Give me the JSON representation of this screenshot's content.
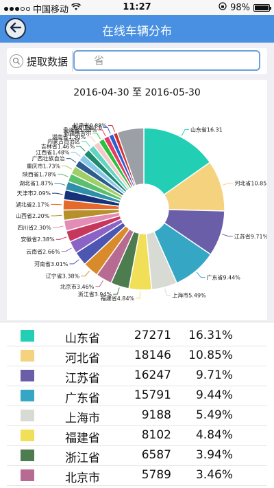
{
  "status_bar": {
    "carrier": "中国移动",
    "time": "11:27",
    "battery_text": "98%",
    "battery_level": 0.98
  },
  "nav": {
    "title": "在线车辆分布",
    "back_icon": "back-arrow-icon"
  },
  "search": {
    "button_label": "提取数据",
    "placeholder": "省"
  },
  "chart_data": {
    "type": "pie",
    "donut": true,
    "title": "2016-04-30 至 2016-05-30",
    "slices": [
      {
        "label": "山东省",
        "value": 16.31,
        "color": "#22cfb5",
        "text": "山东省16.31"
      },
      {
        "label": "河北省",
        "value": 10.85,
        "color": "#f4d27e",
        "text": "河北省10.85"
      },
      {
        "label": "江苏省",
        "value": 9.71,
        "color": "#6a5ea8",
        "text": "江苏省9.71%"
      },
      {
        "label": "广东省",
        "value": 9.44,
        "color": "#35a7c5",
        "text": "广东省9.44%"
      },
      {
        "label": "上海市",
        "value": 5.49,
        "color": "#d7dbd4",
        "text": "上海市5.49%"
      },
      {
        "label": "福建省",
        "value": 4.84,
        "color": "#f2df58",
        "text": "福建省4.84%"
      },
      {
        "label": "浙江省",
        "value": 3.94,
        "color": "#4d7c4f",
        "text": "浙江省3.94%"
      },
      {
        "label": "北京市",
        "value": 3.46,
        "color": "#b86b92",
        "text": "北京市3.46%"
      },
      {
        "label": "辽宁省",
        "value": 3.38,
        "color": "#d98a2a",
        "text": "辽宁省3.38%"
      },
      {
        "label": "河南省",
        "value": 3.01,
        "color": "#4d56b0",
        "text": "河南省3.01%"
      },
      {
        "label": "云南省",
        "value": 2.66,
        "color": "#8b62c6",
        "text": "云南省2.66%"
      },
      {
        "label": "安徽省",
        "value": 2.38,
        "color": "#c6375c",
        "text": "安徽省2.38%"
      },
      {
        "label": "四川省",
        "value": 2.3,
        "color": "#e38cb6",
        "text": "四川省2.30%"
      },
      {
        "label": "山西省",
        "value": 2.2,
        "color": "#b6902a",
        "text": "山西省2.20%"
      },
      {
        "label": "湖北省",
        "value": 2.17,
        "color": "#e36a2a",
        "text": "湖北省2.17%"
      },
      {
        "label": "天津市",
        "value": 2.09,
        "color": "#15327a",
        "text": "天津市2.09%"
      },
      {
        "label": "湖北省",
        "value": 1.87,
        "color": "#2f8fa8",
        "text": "湖北省1.87%"
      },
      {
        "label": "陕西省",
        "value": 1.78,
        "color": "#5bbf6e",
        "text": "陕西省1.78%"
      },
      {
        "label": "重庆市",
        "value": 1.73,
        "color": "#9fcf67",
        "text": "重庆市1.73%"
      },
      {
        "label": "广西壮族自治",
        "value": 1.55,
        "color": "#2f5c8f",
        "text": "广西壮族自治"
      },
      {
        "label": "江西省",
        "value": 1.48,
        "color": "#84c8e8",
        "text": "江西省1.48%"
      },
      {
        "label": "吉林省",
        "value": 1.46,
        "color": "#1f8a6e",
        "text": "吉林省1.46%"
      },
      {
        "label": "内蒙古自治区",
        "value": 1.4,
        "color": "#62d5c0",
        "text": "内蒙古自治区"
      },
      {
        "label": "湖南省",
        "value": 1.3,
        "color": "#f4c9c9",
        "text": "湖南省1.30%"
      },
      {
        "label": "新疆维吾尔",
        "value": 1.25,
        "color": "#2fbf3f",
        "text": "新疆维吾尔"
      },
      {
        "label": "贵州省",
        "value": 1.2,
        "color": "#e23c67",
        "text": "贵州省1.20%"
      },
      {
        "label": "黑龙江省",
        "value": 1.05,
        "color": "#2a5fd2",
        "text": "黑龙江省1.0"
      },
      {
        "label": "甘肃省",
        "value": 0.88,
        "color": "#d32f2f",
        "text": "甘肃省0.88%"
      },
      {
        "label": "其他",
        "value": 5.73,
        "color": "#9aa0a6",
        "text": ""
      }
    ]
  },
  "table": {
    "rows": [
      {
        "name": "山东省",
        "count": "27271",
        "pct": "16.31%",
        "color": "#22cfb5"
      },
      {
        "name": "河北省",
        "count": "18146",
        "pct": "10.85%",
        "color": "#f4d27e"
      },
      {
        "name": "江苏省",
        "count": "16247",
        "pct": "9.71%",
        "color": "#6a5ea8"
      },
      {
        "name": "广东省",
        "count": "15791",
        "pct": "9.44%",
        "color": "#35a7c5"
      },
      {
        "name": "上海市",
        "count": "9188",
        "pct": "5.49%",
        "color": "#d7dbd4"
      },
      {
        "name": "福建省",
        "count": "8102",
        "pct": "4.84%",
        "color": "#f2df58"
      },
      {
        "name": "浙江省",
        "count": "6587",
        "pct": "3.94%",
        "color": "#4d7c4f"
      },
      {
        "name": "北京市",
        "count": "5789",
        "pct": "3.46%",
        "color": "#b86b92"
      }
    ]
  }
}
